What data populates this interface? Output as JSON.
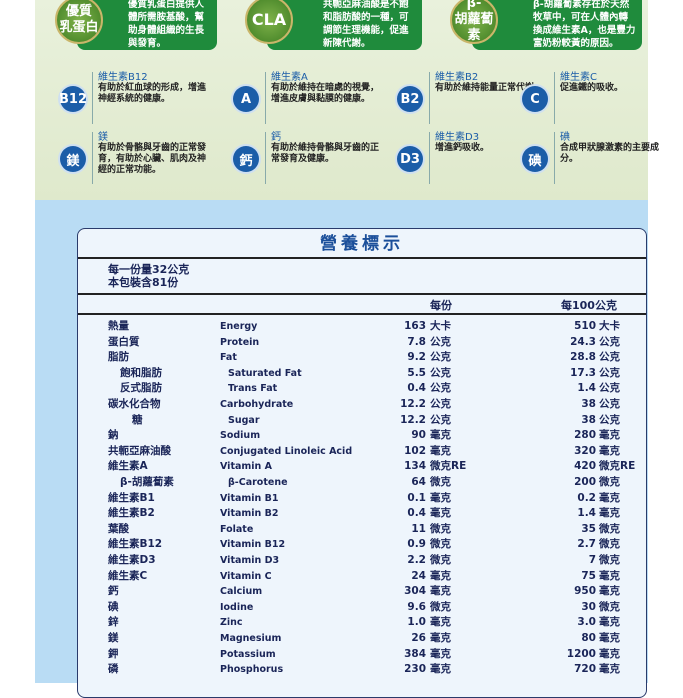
{
  "top_cards": [
    {
      "badge": "優質\n乳蛋白",
      "text": "優質乳蛋白提供人體所需胺基酸，幫助身體組織的生長與發育。"
    },
    {
      "badge": "CLA",
      "text": "共軛亞麻油酸是不飽和脂肪酸的一種，可調節生理機能，促進新陳代謝。"
    },
    {
      "badge": "β-\n胡蘿蔔素",
      "text": "β-胡蘿蔔素存在於天然牧草中，可在人體內轉換成維生素A，也是豐力富奶粉較黃的原因。"
    }
  ],
  "nutrients": [
    {
      "badge": "B12",
      "title": "維生素B12",
      "text": "有助於紅血球的形成，增進神經系統的健康。"
    },
    {
      "badge": "A",
      "title": "維生素A",
      "text": "有助於維持在暗處的視覺，增進皮膚與黏膜的健康。"
    },
    {
      "badge": "B2",
      "title": "維生素B2",
      "text": "有助於維持能量正常代謝。"
    },
    {
      "badge": "C",
      "title": "維生素C",
      "text": "促進鐵的吸收。"
    },
    {
      "badge": "鎂",
      "title": "鎂",
      "text": "有助於骨骼與牙齒的正常發育，有助於心臟、肌肉及神經的正常功能。"
    },
    {
      "badge": "鈣",
      "title": "鈣",
      "text": "有助於維持骨骼與牙齒的正常發育及健康。"
    },
    {
      "badge": "D3",
      "title": "維生素D3",
      "text": "增進鈣吸收。"
    },
    {
      "badge": "碘",
      "title": "碘",
      "text": "合成甲狀腺激素的主要成分。"
    }
  ],
  "label": {
    "title": "營養標示",
    "serving_size": "每一份量32公克",
    "servings": "本包裝含81份",
    "col_per_serving": "每份",
    "col_per_100": "每100公克",
    "rows": [
      [
        "熱量",
        "Energy",
        "163",
        "大卡",
        "510",
        "大卡",
        0
      ],
      [
        "蛋白質",
        "Protein",
        "7.8",
        "公克",
        "24.3",
        "公克",
        0
      ],
      [
        "脂肪",
        "Fat",
        "9.2",
        "公克",
        "28.8",
        "公克",
        0
      ],
      [
        "飽和脂肪",
        "Saturated Fat",
        "5.5",
        "公克",
        "17.3",
        "公克",
        1
      ],
      [
        "反式脂肪",
        "Trans Fat",
        "0.4",
        "公克",
        "1.4",
        "公克",
        1
      ],
      [
        "碳水化合物",
        "Carbohydrate",
        "12.2",
        "公克",
        "38",
        "公克",
        0
      ],
      [
        "糖",
        "Sugar",
        "12.2",
        "公克",
        "38",
        "公克",
        2
      ],
      [
        "鈉",
        "Sodium",
        "90",
        "毫克",
        "280",
        "毫克",
        0
      ],
      [
        "共軛亞麻油酸",
        "Conjugated Linoleic Acid",
        "102",
        "毫克",
        "320",
        "毫克",
        0
      ],
      [
        "維生素A",
        "Vitamin A",
        "134",
        "微克RE",
        "420",
        "微克RE",
        0
      ],
      [
        "β-胡蘿蔔素",
        "β-Carotene",
        "64",
        "微克",
        "200",
        "微克",
        1
      ],
      [
        "維生素B1",
        "Vitamin B1",
        "0.1",
        "毫克",
        "0.2",
        "毫克",
        0
      ],
      [
        "維生素B2",
        "Vitamin B2",
        "0.4",
        "毫克",
        "1.4",
        "毫克",
        0
      ],
      [
        "葉酸",
        "Folate",
        "11",
        "微克",
        "35",
        "微克",
        0
      ],
      [
        "維生素B12",
        "Vitamin B12",
        "0.9",
        "微克",
        "2.7",
        "微克",
        0
      ],
      [
        "維生素D3",
        "Vitamin D3",
        "2.2",
        "微克",
        "7",
        "微克",
        0
      ],
      [
        "維生素C",
        "Vitamin C",
        "24",
        "毫克",
        "75",
        "毫克",
        0
      ],
      [
        "鈣",
        "Calcium",
        "304",
        "毫克",
        "950",
        "毫克",
        0
      ],
      [
        "碘",
        "Iodine",
        "9.6",
        "微克",
        "30",
        "微克",
        0
      ],
      [
        "鋅",
        "Zinc",
        "1.0",
        "毫克",
        "3.0",
        "毫克",
        0
      ],
      [
        "鎂",
        "Magnesium",
        "26",
        "毫克",
        "80",
        "毫克",
        0
      ],
      [
        "鉀",
        "Potassium",
        "384",
        "毫克",
        "1200",
        "毫克",
        0
      ],
      [
        "磷",
        "Phosphorus",
        "230",
        "毫克",
        "720",
        "毫克",
        0
      ]
    ]
  }
}
